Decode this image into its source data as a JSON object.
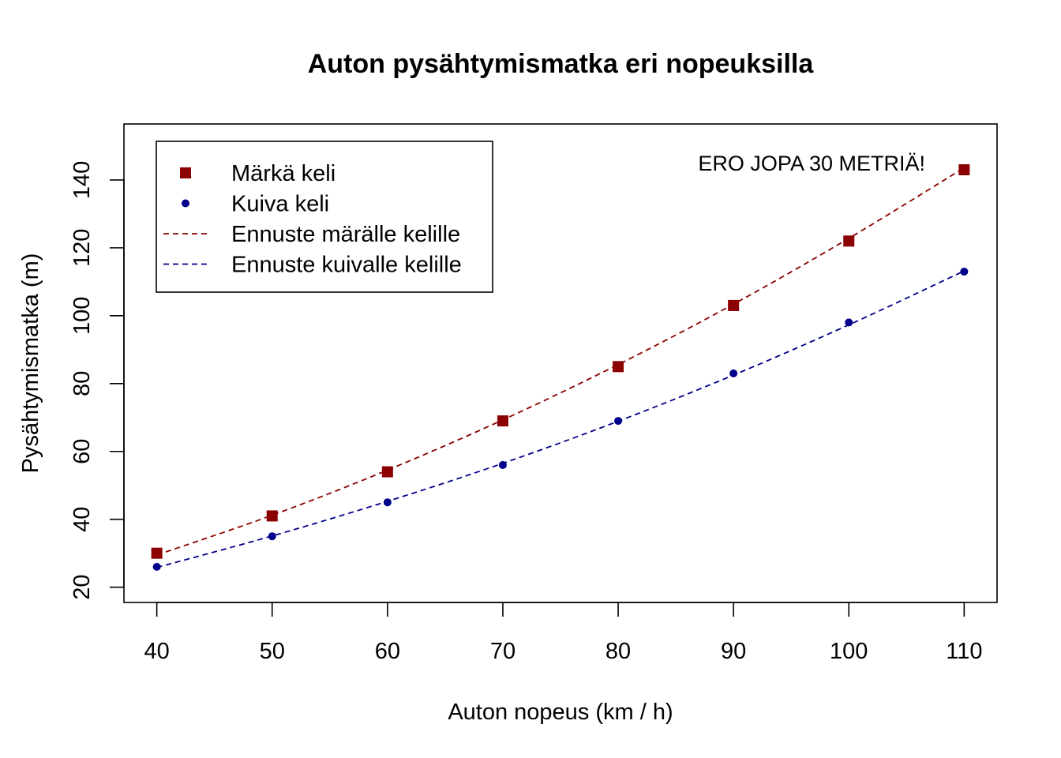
{
  "chart_data": {
    "type": "line",
    "title": "Auton pysähtymismatka eri nopeuksilla",
    "xlabel": "Auton nopeus (km / h)",
    "ylabel": "Pysähtymismatka (m)",
    "x": [
      40,
      50,
      60,
      70,
      80,
      90,
      100,
      110
    ],
    "xlim": [
      37.15,
      112.85
    ],
    "ylim": [
      15.5,
      156.5
    ],
    "xticks": [
      40,
      50,
      60,
      70,
      80,
      90,
      100,
      110
    ],
    "yticks": [
      20,
      40,
      60,
      80,
      100,
      120,
      140
    ],
    "grid": false,
    "legend_position": "top-left",
    "annotation": "ERO JOPA 30 METRIÄ!",
    "series": [
      {
        "name": "Märkä keli",
        "kind": "points",
        "marker": "square",
        "color": "#8b0000",
        "values": [
          30,
          41,
          54,
          69,
          85,
          103,
          122,
          143
        ]
      },
      {
        "name": "Kuiva keli",
        "kind": "points",
        "marker": "circle",
        "color": "#00008b",
        "values": [
          26,
          35,
          45,
          56,
          69,
          83,
          98,
          113
        ]
      },
      {
        "name": "Ennuste märälle kelille",
        "kind": "dashed-line",
        "color": "#8b0000",
        "values": [
          29.5,
          41.2,
          54.5,
          69.3,
          85.6,
          103.4,
          122.8,
          143.6
        ]
      },
      {
        "name": "Ennuste kuivalle kelille",
        "kind": "dashed-line",
        "color": "#00008b",
        "values": [
          25.8,
          35.1,
          45.3,
          56.5,
          68.9,
          82.5,
          97.3,
          113.2
        ]
      }
    ]
  }
}
